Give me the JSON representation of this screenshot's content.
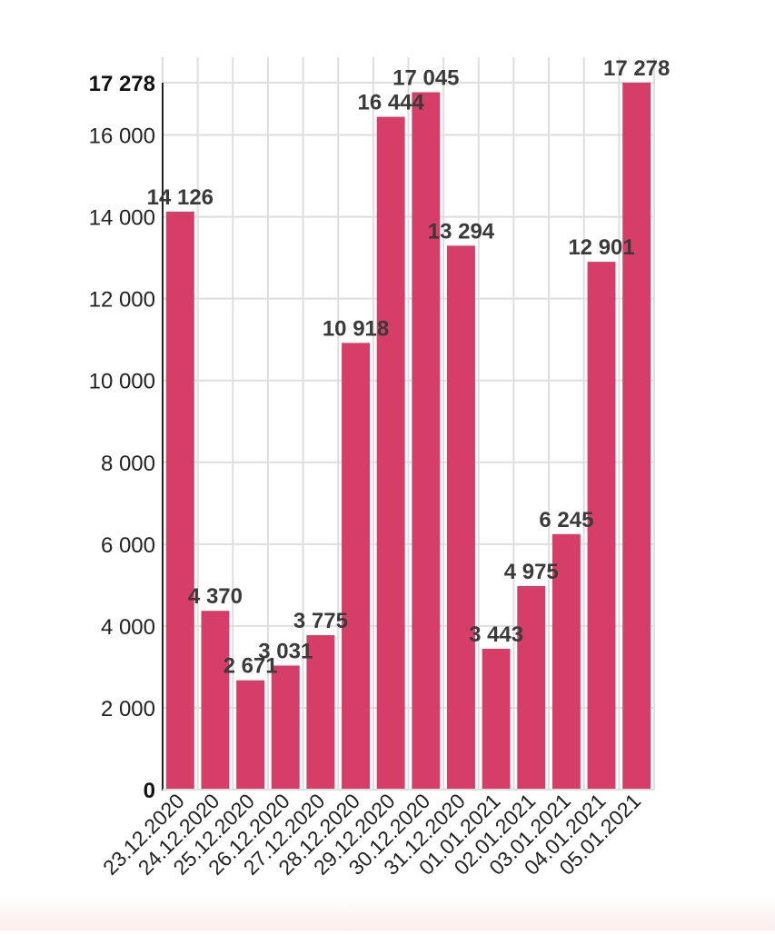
{
  "chart_data": {
    "type": "bar",
    "categories": [
      "23.12.2020",
      "24.12.2020",
      "25.12.2020",
      "26.12.2020",
      "27.12.2020",
      "28.12.2020",
      "29.12.2020",
      "30.12.2020",
      "31.12.2020",
      "01.01.2021",
      "02.01.2021",
      "03.01.2021",
      "04.01.2021",
      "05.01.2021"
    ],
    "values": [
      14126,
      4370,
      2671,
      3031,
      3775,
      10918,
      16444,
      17045,
      13294,
      3443,
      4975,
      6245,
      12901,
      17278
    ],
    "value_labels": [
      "14 126",
      "4 370",
      "2 671",
      "3 031",
      "3 775",
      "10 918",
      "16 444",
      "17 045",
      "13 294",
      "3 443",
      "4 975",
      "6 245",
      "12 901",
      "17 278"
    ],
    "y_ticks": [
      {
        "value": 0,
        "label": "0",
        "bold": true
      },
      {
        "value": 2000,
        "label": "2 000",
        "bold": false
      },
      {
        "value": 4000,
        "label": "4 000",
        "bold": false
      },
      {
        "value": 6000,
        "label": "6 000",
        "bold": false
      },
      {
        "value": 8000,
        "label": "8 000",
        "bold": false
      },
      {
        "value": 10000,
        "label": "10 000",
        "bold": false
      },
      {
        "value": 12000,
        "label": "12 000",
        "bold": false
      },
      {
        "value": 14000,
        "label": "14 000",
        "bold": false
      },
      {
        "value": 16000,
        "label": "16 000",
        "bold": false
      },
      {
        "value": 17278,
        "label": "17 278",
        "bold": true
      }
    ],
    "ylim": [
      0,
      17278
    ],
    "title": "",
    "xlabel": "",
    "ylabel": "",
    "grid": true,
    "bar_color": "#d63e68"
  }
}
